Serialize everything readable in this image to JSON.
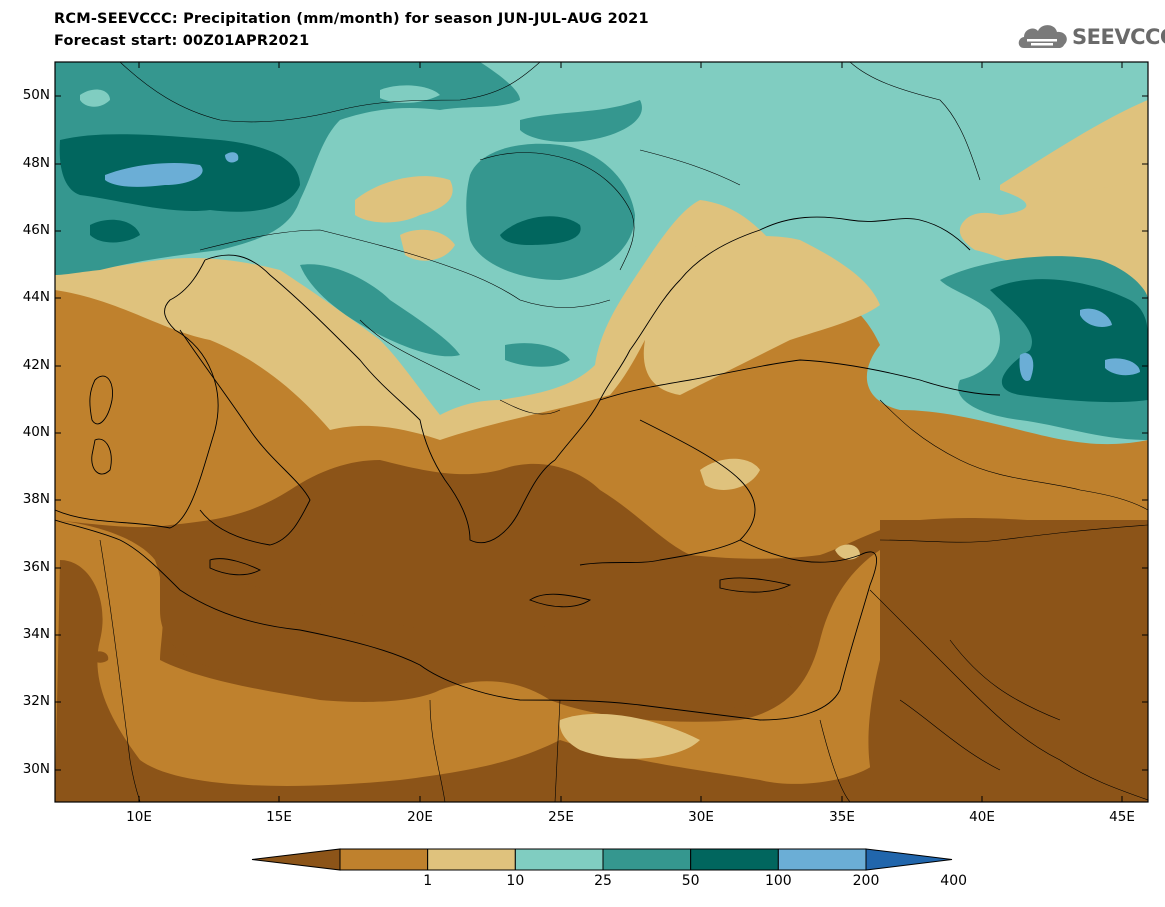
{
  "title": {
    "line1": "RCM-SEEVCCC: Precipitation (mm/month) for season JUN-JUL-AUG 2021",
    "line2": "Forecast start: 00Z01APR2021"
  },
  "logo": {
    "text": "SEEVCCC",
    "icon": "cloud-icon"
  },
  "map": {
    "lat_ticks": [
      "50N",
      "48N",
      "46N",
      "44N",
      "42N",
      "40N",
      "38N",
      "36N",
      "34N",
      "32N",
      "30N"
    ],
    "lon_ticks": [
      "10E",
      "15E",
      "20E",
      "25E",
      "30E",
      "35E",
      "40E",
      "45E"
    ]
  },
  "colorbar": {
    "colors": [
      "#8c5418",
      "#bf812d",
      "#dfc27d",
      "#80cdc1",
      "#35978f",
      "#01665e",
      "#6baed6",
      "#2166ac"
    ],
    "labels": [
      "1",
      "10",
      "25",
      "50",
      "100",
      "200",
      "400"
    ]
  }
}
